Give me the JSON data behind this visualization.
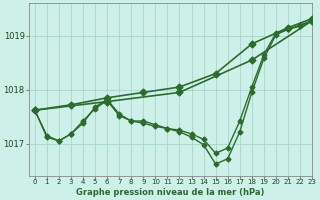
{
  "title": "Graphe pression niveau de la mer (hPa)",
  "background_color": "#cdf0e8",
  "grid_color": "#a8d8cc",
  "line_color": "#2d6b2d",
  "xlim": [
    -0.5,
    23
  ],
  "ylim": [
    1016.4,
    1019.6
  ],
  "yticks": [
    1017,
    1018,
    1019
  ],
  "xtick_labels": [
    "0",
    "1",
    "2",
    "3",
    "4",
    "5",
    "6",
    "7",
    "8",
    "9",
    "10",
    "11",
    "12",
    "13",
    "14",
    "15",
    "16",
    "17",
    "18",
    "19",
    "20",
    "21",
    "22",
    "23"
  ],
  "xticks": [
    0,
    1,
    2,
    3,
    4,
    5,
    6,
    7,
    8,
    9,
    10,
    11,
    12,
    13,
    14,
    15,
    16,
    17,
    18,
    19,
    20,
    21,
    22,
    23
  ],
  "series": [
    {
      "x": [
        0,
        6,
        12,
        18,
        23
      ],
      "y": [
        1017.62,
        1017.78,
        1017.95,
        1018.55,
        1019.28
      ],
      "marker": "D",
      "markersize": 3.5,
      "linewidth": 1.2
    },
    {
      "x": [
        0,
        3,
        6,
        9,
        12,
        15,
        18,
        21,
        23
      ],
      "y": [
        1017.62,
        1017.72,
        1017.85,
        1017.95,
        1018.05,
        1018.3,
        1018.85,
        1019.15,
        1019.32
      ],
      "marker": "D",
      "markersize": 3.5,
      "linewidth": 1.2
    },
    {
      "x": [
        0,
        1,
        2,
        3,
        4,
        5,
        6,
        7,
        8,
        9,
        10,
        11,
        12,
        13,
        14,
        15,
        16,
        17,
        18,
        19,
        20,
        21,
        22,
        23
      ],
      "y": [
        1017.62,
        1017.15,
        1017.05,
        1017.18,
        1017.38,
        1017.68,
        1017.82,
        1017.55,
        1017.42,
        1017.38,
        1017.32,
        1017.28,
        1017.22,
        1017.12,
        1016.98,
        1016.62,
        1016.72,
        1017.22,
        1017.95,
        1018.58,
        1019.02,
        1019.12,
        1019.18,
        1019.28
      ],
      "marker": "D",
      "markersize": 2.5,
      "linewidth": 1.0
    },
    {
      "x": [
        0,
        1,
        2,
        3,
        4,
        5,
        6,
        7,
        8,
        9,
        10,
        11,
        12,
        13,
        14,
        15,
        16,
        17,
        18,
        19,
        20,
        21,
        22,
        23
      ],
      "y": [
        1017.62,
        1017.12,
        1017.05,
        1017.18,
        1017.42,
        1017.65,
        1017.8,
        1017.52,
        1017.42,
        1017.42,
        1017.35,
        1017.28,
        1017.25,
        1017.18,
        1017.08,
        1016.82,
        1016.92,
        1017.42,
        1018.05,
        1018.65,
        1019.05,
        1019.12,
        1019.2,
        1019.28
      ],
      "marker": "D",
      "markersize": 2.5,
      "linewidth": 1.0
    }
  ]
}
